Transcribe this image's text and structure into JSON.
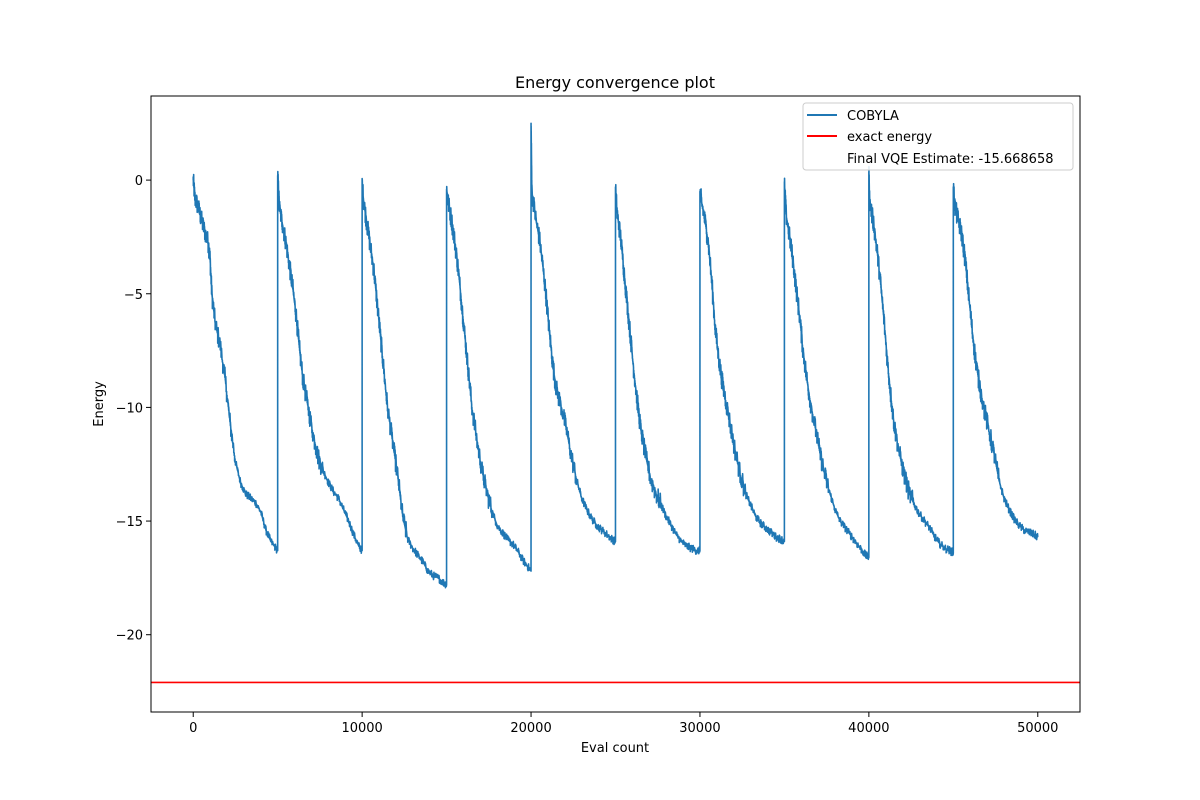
{
  "chart_data": {
    "type": "line",
    "title": "Energy convergence plot",
    "xlabel": "Eval count",
    "ylabel": "Energy",
    "xlim": [
      -2500,
      52500
    ],
    "ylim": [
      -23.4,
      3.7
    ],
    "xticks": [
      0,
      10000,
      20000,
      30000,
      40000,
      50000
    ],
    "xtick_labels": [
      "0",
      "10000",
      "20000",
      "30000",
      "40000",
      "50000"
    ],
    "yticks": [
      0,
      -5,
      -10,
      -15,
      -20
    ],
    "ytick_labels": [
      "0",
      "−5",
      "−10",
      "−15",
      "−20"
    ],
    "grid": false,
    "legend_position": "upper right",
    "legend": [
      "COBYLA",
      "exact energy",
      "Final VQE Estimate: -15.668658"
    ],
    "series": [
      {
        "name": "COBYLA",
        "color": "#1f77b4",
        "runs": [
          {
            "x": [
              0,
              100,
              300,
              500,
              700,
              900,
              1000,
              1100,
              1300,
              1600,
              1900,
              2200,
              2500,
              2800,
              3100,
              3400,
              3700,
              4000,
              4300,
              4600,
              4999
            ],
            "y": [
              0.0,
              -0.8,
              -1.2,
              -1.8,
              -2.3,
              -2.8,
              -3.5,
              -5.0,
              -6.3,
              -7.3,
              -8.8,
              -10.8,
              -12.4,
              -13.3,
              -13.8,
              -14.0,
              -14.2,
              -14.6,
              -15.4,
              -15.9,
              -16.3
            ]
          },
          {
            "x": [
              5000,
              5100,
              5300,
              5500,
              5700,
              5900,
              6100,
              6300,
              6500,
              6800,
              7100,
              7400,
              7700,
              8000,
              8300,
              8600,
              8900,
              9200,
              9500,
              9800,
              9999
            ],
            "y": [
              0.2,
              -1.2,
              -2.0,
              -2.8,
              -3.8,
              -4.8,
              -6.0,
              -7.5,
              -8.8,
              -10.0,
              -11.2,
              -12.2,
              -12.8,
              -13.3,
              -13.7,
              -14.0,
              -14.5,
              -15.0,
              -15.6,
              -16.1,
              -16.3
            ]
          },
          {
            "x": [
              10000,
              10100,
              10300,
              10500,
              10700,
              10900,
              11100,
              11300,
              11500,
              11800,
              12100,
              12400,
              12700,
              13000,
              13300,
              13600,
              13900,
              14200,
              14500,
              14800,
              14999
            ],
            "y": [
              -0.2,
              -1.0,
              -2.0,
              -3.0,
              -4.0,
              -5.5,
              -7.0,
              -8.5,
              -10.0,
              -11.5,
              -13.0,
              -14.8,
              -15.8,
              -16.2,
              -16.5,
              -16.8,
              -17.2,
              -17.4,
              -17.5,
              -17.7,
              -17.8
            ]
          },
          {
            "x": [
              15000,
              15100,
              15300,
              15500,
              15700,
              15900,
              16100,
              16300,
              16500,
              16800,
              17100,
              17400,
              17700,
              18000,
              18300,
              18600,
              18900,
              19200,
              19500,
              19800,
              19999
            ],
            "y": [
              -0.4,
              -1.0,
              -1.8,
              -2.8,
              -4.0,
              -5.5,
              -7.0,
              -8.5,
              -10.0,
              -11.5,
              -12.8,
              -13.8,
              -14.6,
              -15.2,
              -15.5,
              -15.8,
              -16.0,
              -16.3,
              -16.7,
              -17.0,
              -17.2
            ]
          },
          {
            "x": [
              20000,
              20050,
              20300,
              20500,
              20700,
              20900,
              21100,
              21300,
              21500,
              21800,
              22100,
              22400,
              22700,
              23000,
              23300,
              23600,
              23900,
              24200,
              24500,
              24800,
              24999
            ],
            "y": [
              2.5,
              -0.5,
              -1.8,
              -2.6,
              -3.8,
              -5.2,
              -6.8,
              -8.2,
              -9.2,
              -10.0,
              -11.0,
              -12.2,
              -13.2,
              -14.0,
              -14.5,
              -14.9,
              -15.2,
              -15.4,
              -15.6,
              -15.8,
              -15.9
            ]
          },
          {
            "x": [
              25000,
              25100,
              25300,
              25500,
              25700,
              25900,
              26100,
              26300,
              26500,
              26800,
              27100,
              27400,
              27700,
              28000,
              28300,
              28600,
              28900,
              29200,
              29500,
              29800,
              29999
            ],
            "y": [
              -0.4,
              -1.5,
              -2.5,
              -4.0,
              -5.5,
              -7.0,
              -8.5,
              -9.8,
              -11.0,
              -12.2,
              -13.2,
              -13.8,
              -14.3,
              -14.8,
              -15.2,
              -15.6,
              -15.9,
              -16.1,
              -16.2,
              -16.3,
              -16.3
            ]
          },
          {
            "x": [
              30000,
              30100,
              30300,
              30500,
              30700,
              30900,
              31100,
              31300,
              31500,
              31800,
              32100,
              32400,
              32700,
              33000,
              33300,
              33600,
              33900,
              34200,
              34500,
              34800,
              34999
            ],
            "y": [
              -0.5,
              -1.0,
              -1.8,
              -2.8,
              -4.5,
              -6.5,
              -7.8,
              -8.8,
              -9.6,
              -10.8,
              -12.0,
              -13.0,
              -13.8,
              -14.3,
              -14.8,
              -15.1,
              -15.3,
              -15.5,
              -15.7,
              -15.8,
              -15.9
            ]
          },
          {
            "x": [
              35000,
              35100,
              35300,
              35500,
              35700,
              35900,
              36100,
              36300,
              36500,
              36800,
              37100,
              37400,
              37700,
              38000,
              38300,
              38600,
              38900,
              39200,
              39500,
              39800,
              39999
            ],
            "y": [
              -0.2,
              -1.5,
              -2.5,
              -3.5,
              -4.8,
              -6.0,
              -7.5,
              -8.6,
              -9.6,
              -10.8,
              -12.0,
              -13.0,
              -13.8,
              -14.5,
              -15.0,
              -15.3,
              -15.6,
              -15.9,
              -16.2,
              -16.5,
              -16.6
            ]
          },
          {
            "x": [
              40000,
              40050,
              40300,
              40500,
              40700,
              40900,
              41100,
              41300,
              41500,
              41800,
              42100,
              42400,
              42700,
              43000,
              43300,
              43600,
              43900,
              44200,
              44500,
              44800,
              44999
            ],
            "y": [
              0.3,
              -1.0,
              -2.0,
              -3.2,
              -4.6,
              -6.2,
              -8.0,
              -9.5,
              -10.8,
              -12.0,
              -13.0,
              -13.8,
              -14.3,
              -14.7,
              -15.0,
              -15.3,
              -15.7,
              -16.0,
              -16.2,
              -16.3,
              -16.4
            ]
          },
          {
            "x": [
              45000,
              45100,
              45300,
              45500,
              45700,
              45900,
              46100,
              46300,
              46500,
              46800,
              47100,
              47400,
              47700,
              48000,
              48300,
              48600,
              48900,
              49200,
              49500,
              49800,
              50000
            ],
            "y": [
              -0.3,
              -1.2,
              -1.8,
              -2.4,
              -3.5,
              -5.0,
              -6.5,
              -7.8,
              -8.8,
              -10.0,
              -11.0,
              -12.0,
              -13.2,
              -14.0,
              -14.5,
              -14.9,
              -15.2,
              -15.4,
              -15.5,
              -15.6,
              -15.7
            ]
          }
        ]
      },
      {
        "name": "exact energy",
        "color": "#ff0000",
        "y": -22.1
      }
    ]
  }
}
